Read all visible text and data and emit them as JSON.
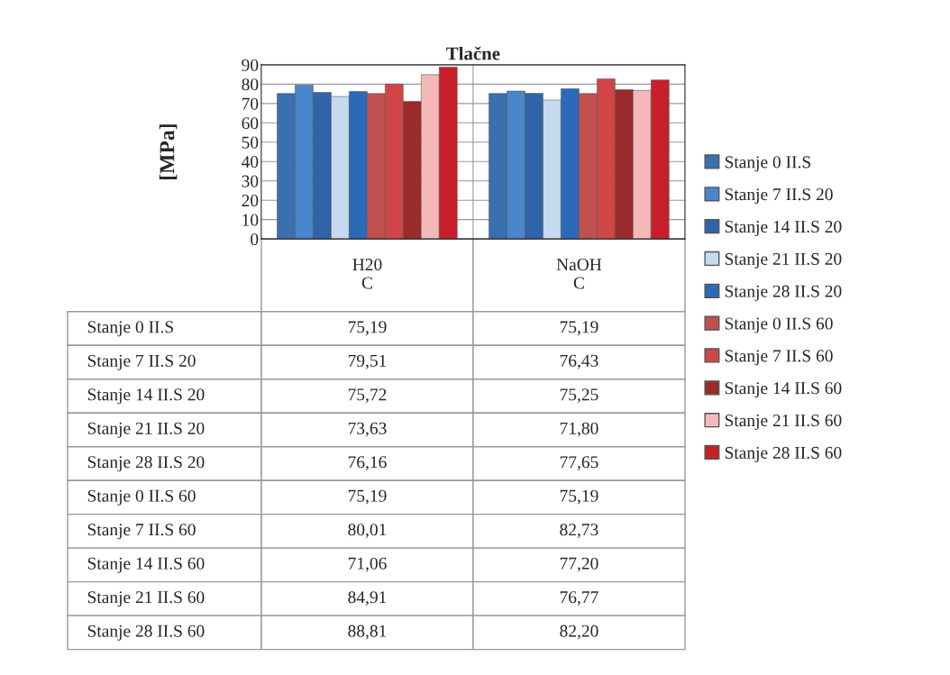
{
  "chart_data": {
    "type": "bar",
    "title": "Tlačne",
    "ylabel": "[MPa]",
    "categories": [
      "H20\nC",
      "NaOH\nC"
    ],
    "ylim": [
      0,
      90
    ],
    "yticks": [
      0,
      10,
      20,
      30,
      40,
      50,
      60,
      70,
      80,
      90
    ],
    "grid": "y",
    "legend": "right",
    "series": [
      {
        "name": "Stanje 0 II.S",
        "color": "#3a6fb0",
        "values": [
          75.19,
          75.19
        ],
        "value_labels": [
          "75,19",
          "75,19"
        ]
      },
      {
        "name": "Stanje 7 II.S 20",
        "color": "#4a86cc",
        "values": [
          79.51,
          76.43
        ],
        "value_labels": [
          "79,51",
          "76,43"
        ]
      },
      {
        "name": "Stanje 14 II.S 20",
        "color": "#2f65a8",
        "values": [
          75.72,
          75.25
        ],
        "value_labels": [
          "75,72",
          "75,25"
        ]
      },
      {
        "name": "Stanje 21 II.S 20",
        "color": "#c5d9ef",
        "values": [
          73.63,
          71.8
        ],
        "value_labels": [
          "73,63",
          "71,80"
        ]
      },
      {
        "name": "Stanje 28 II.S 20",
        "color": "#2a6ab8",
        "values": [
          76.16,
          77.65
        ],
        "value_labels": [
          "76,16",
          "77,65"
        ]
      },
      {
        "name": "Stanje 0 II.S 60",
        "color": "#c0504d",
        "values": [
          75.19,
          75.19
        ],
        "value_labels": [
          "75,19",
          "75,19"
        ]
      },
      {
        "name": "Stanje 7 II.S 60",
        "color": "#d04545",
        "values": [
          80.01,
          82.73
        ],
        "value_labels": [
          "80,01",
          "82,73"
        ]
      },
      {
        "name": "Stanje 14 II.S 60",
        "color": "#9b2a2a",
        "values": [
          71.06,
          77.2
        ],
        "value_labels": [
          "71,06",
          "77,20"
        ]
      },
      {
        "name": "Stanje 21 II.S 60",
        "color": "#f4b8b8",
        "values": [
          84.91,
          76.77
        ],
        "value_labels": [
          "84,91",
          "76,77"
        ]
      },
      {
        "name": "Stanje 28 II.S 60",
        "color": "#c8202a",
        "values": [
          88.81,
          82.2
        ],
        "value_labels": [
          "88,81",
          "82,20"
        ]
      }
    ]
  }
}
